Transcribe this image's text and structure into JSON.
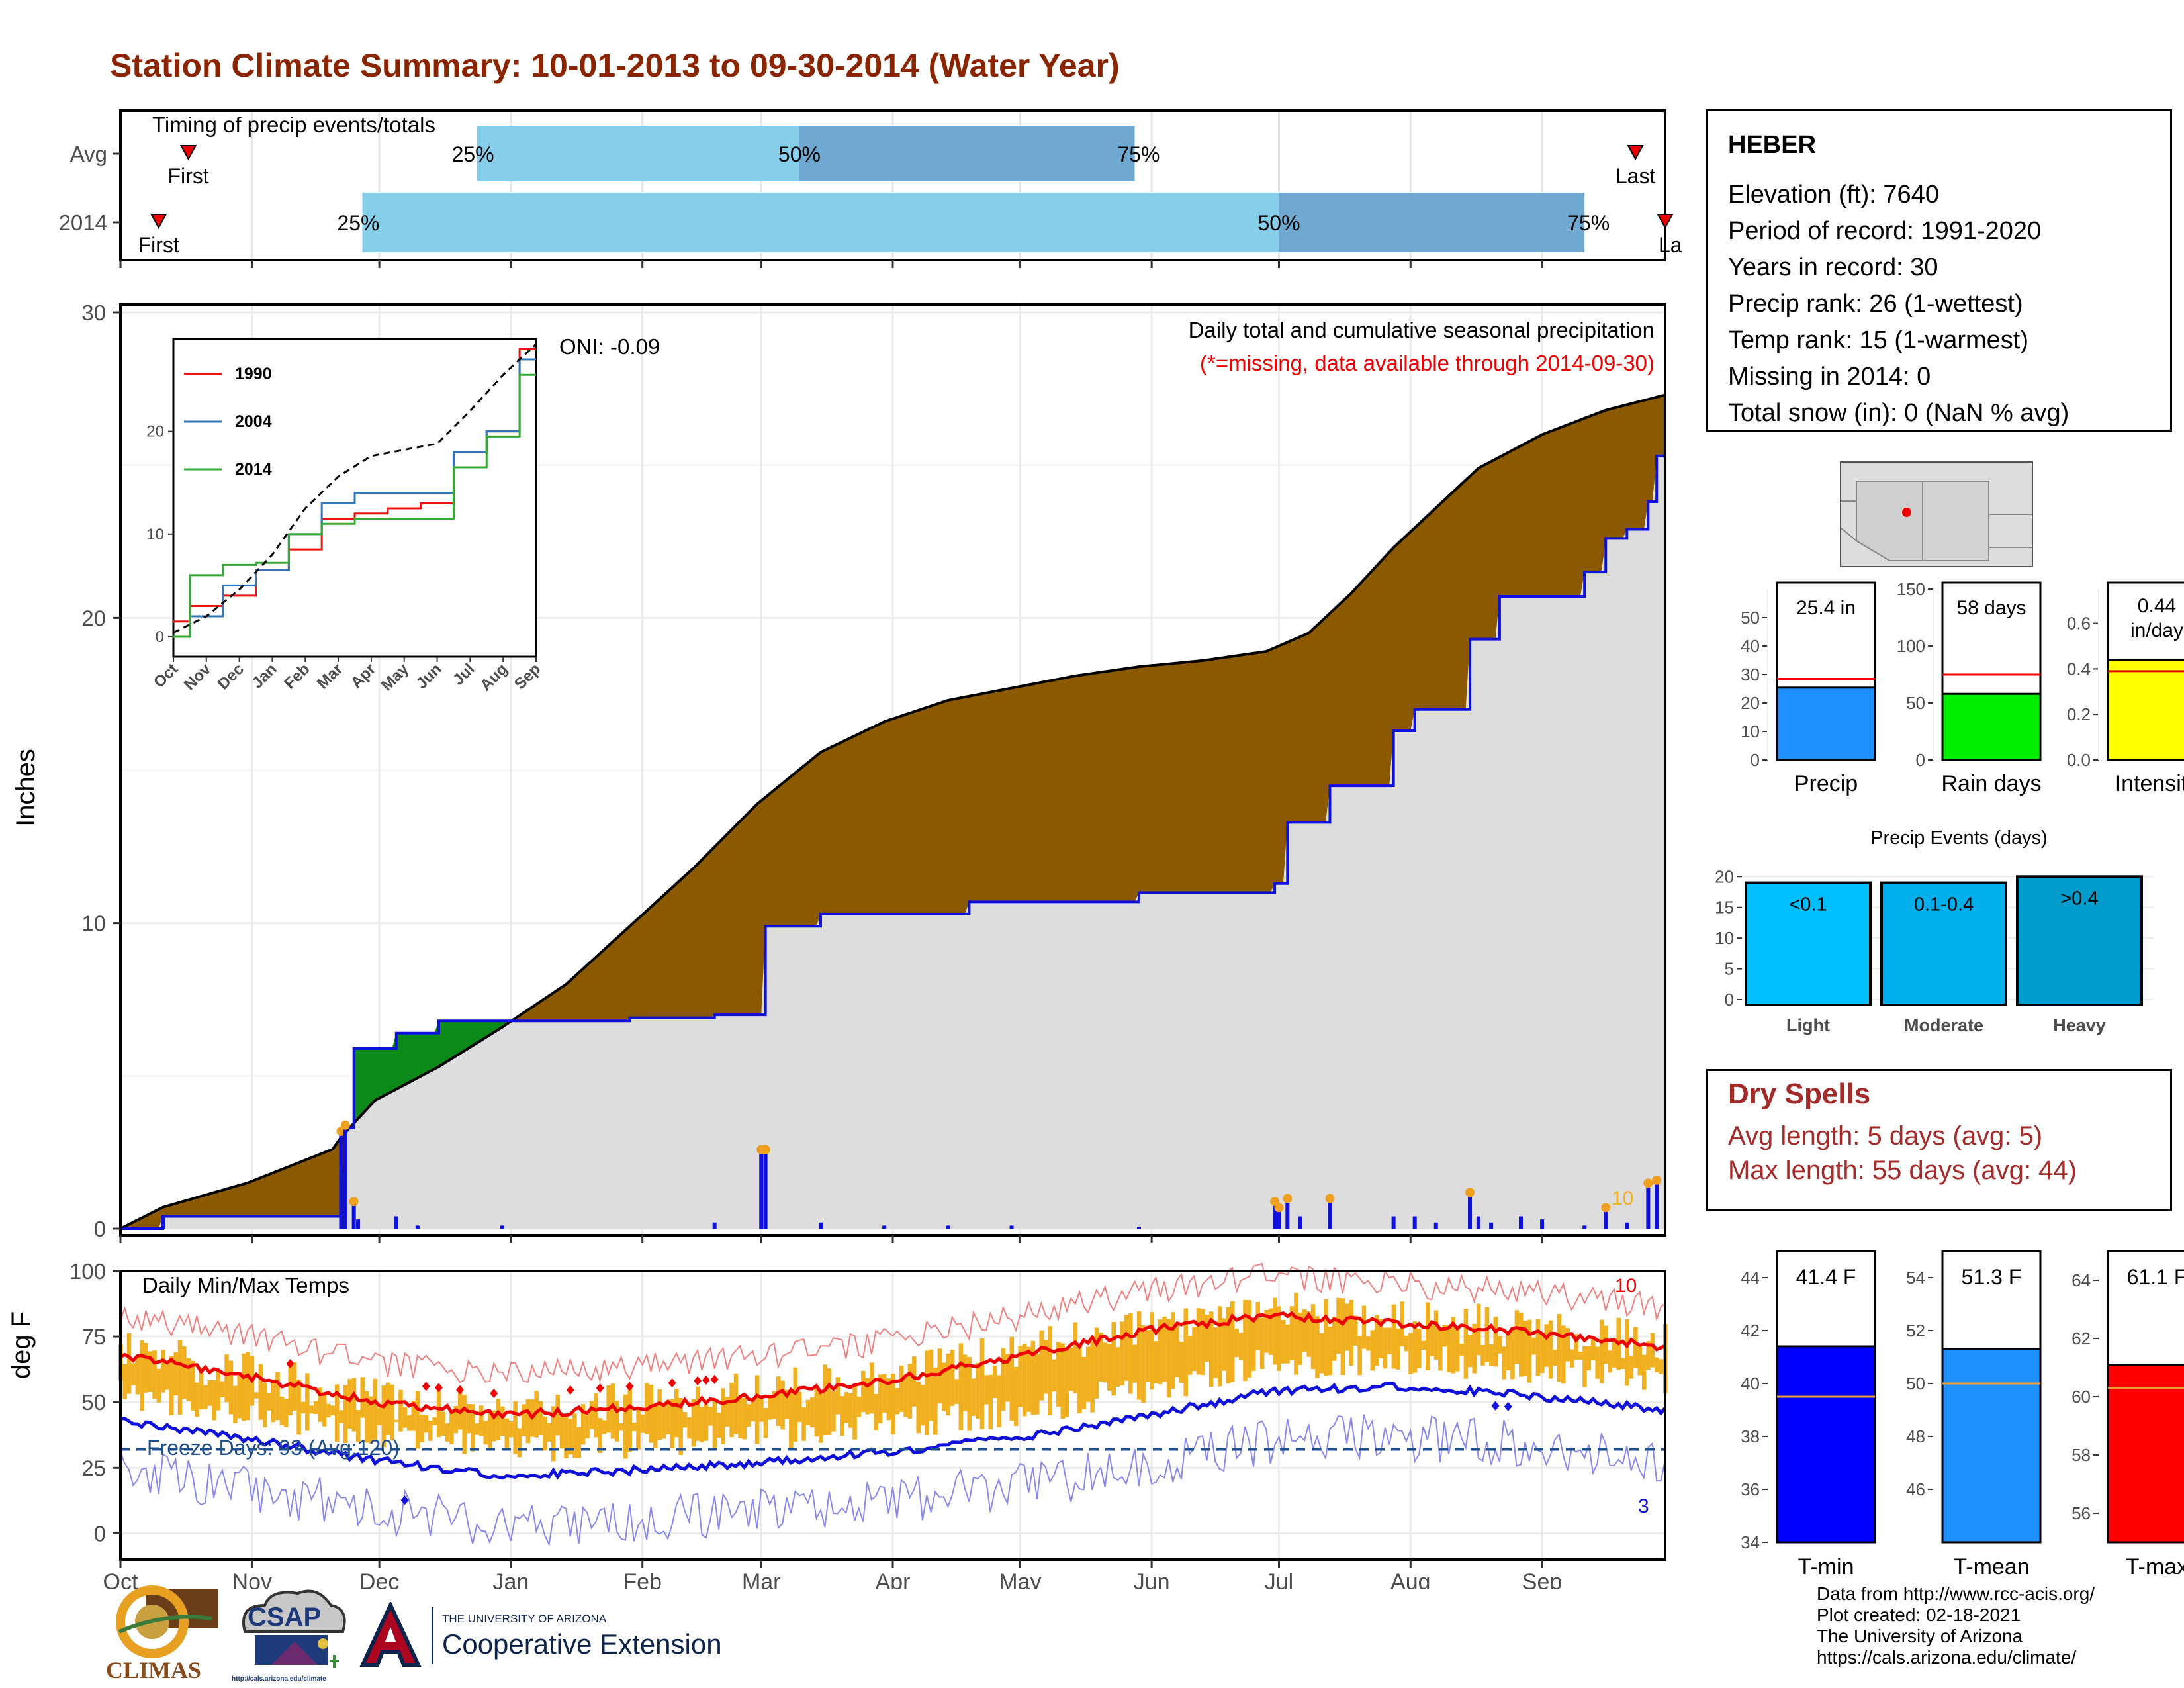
{
  "page_title": "Station Climate Summary: 10-01-2013 to 09-30-2014 (Water Year)",
  "colors": {
    "title": "#8B2500",
    "brown": "#8B5A00",
    "green": "#0B8A1A",
    "blue": "#1010DD",
    "light_blue": "#87CEEB",
    "mid_blue": "#6FA8D0",
    "orange": "#F0B020",
    "red": "#EE0000",
    "gray_fill": "#DDDDDD",
    "dry_red": "#A52A2A"
  },
  "timing": {
    "title": "Timing of precip events/totals",
    "rows": [
      {
        "label": "Avg",
        "first_label": "First",
        "last_label": "Last",
        "p25": "25%",
        "p50": "50%",
        "p75": "75%",
        "first_day": 16,
        "p25_day": 84,
        "p50_day": 160,
        "p75_day": 239,
        "last_day": 357
      },
      {
        "label": "2014",
        "first_label": "First",
        "last_label": "Last",
        "p25": "25%",
        "p50": "50%",
        "p75": "75%",
        "first_day": 9,
        "p25_day": 57,
        "p50_day": 273,
        "p75_day": 345,
        "last_day": 364
      }
    ]
  },
  "main_chart": {
    "ylabel": "Inches",
    "y_ticks": [
      "0",
      "10",
      "20",
      "30"
    ],
    "ylim": [
      0,
      30
    ],
    "note_title": "Daily total and cumulative seasonal precipitation",
    "note_missing": "(*=missing, data available through 2014-09-30)",
    "oni": "ONI: -0.09",
    "count_label": "10"
  },
  "chart_data": [
    {
      "type": "area",
      "title": "Daily total and cumulative seasonal precipitation",
      "ylabel": "Inches",
      "ylim": [
        0,
        30
      ],
      "x_unit": "day of water year",
      "series": [
        {
          "name": "avg-cumulative",
          "x": [
            0,
            10,
            30,
            50,
            52,
            60,
            75,
            90,
            105,
            120,
            135,
            150,
            165,
            180,
            195,
            210,
            225,
            240,
            255,
            270,
            280,
            290,
            300,
            310,
            320,
            335,
            350,
            364
          ],
          "values": [
            0,
            0.7,
            1.5,
            2.6,
            3.0,
            4.2,
            5.3,
            6.6,
            8.0,
            9.9,
            11.8,
            13.9,
            15.6,
            16.6,
            17.3,
            17.7,
            18.1,
            18.4,
            18.6,
            18.9,
            19.5,
            20.8,
            22.3,
            23.6,
            24.9,
            26.0,
            26.8,
            27.3
          ]
        },
        {
          "name": "2014-cumulative",
          "x": [
            0,
            9,
            10,
            52,
            53,
            55,
            65,
            75,
            90,
            120,
            140,
            151,
            152,
            165,
            200,
            240,
            272,
            275,
            285,
            300,
            305,
            318,
            325,
            345,
            350,
            355,
            360,
            362,
            364
          ],
          "values": [
            0,
            0,
            0.4,
            0.5,
            3.3,
            5.9,
            6.4,
            6.8,
            6.8,
            6.9,
            7.0,
            7.0,
            9.9,
            10.3,
            10.7,
            11.0,
            11.3,
            13.3,
            14.5,
            16.3,
            17.0,
            19.3,
            20.7,
            21.5,
            22.6,
            22.9,
            23.8,
            25.3,
            25.3
          ]
        },
        {
          "name": "daily-precip",
          "x": [
            10,
            52,
            53,
            55,
            56,
            65,
            70,
            90,
            140,
            151,
            152,
            165,
            180,
            195,
            210,
            240,
            272,
            273,
            275,
            278,
            285,
            300,
            305,
            310,
            318,
            320,
            323,
            330,
            335,
            345,
            350,
            355,
            360,
            362
          ],
          "values": [
            0.4,
            3.1,
            3.3,
            0.8,
            0.3,
            0.4,
            0.1,
            0.1,
            0.2,
            2.5,
            2.5,
            0.2,
            0.1,
            0.1,
            0.1,
            0.05,
            0.8,
            0.6,
            0.9,
            0.4,
            0.9,
            0.4,
            0.4,
            0.2,
            1.1,
            0.4,
            0.2,
            0.4,
            0.3,
            0.1,
            0.6,
            0.2,
            1.4,
            1.5
          ]
        }
      ]
    },
    {
      "type": "line",
      "title": "",
      "x_ticks": [
        "Oct",
        "Nov",
        "Dec",
        "Jan",
        "Feb",
        "Mar",
        "Apr",
        "May",
        "Jun",
        "Jul",
        "Aug",
        "Sep"
      ],
      "y_ticks": [
        "0",
        "10",
        "20"
      ],
      "ylim": [
        0,
        29
      ],
      "series": [
        {
          "name": "1990",
          "color": "#EE1111",
          "x": [
            0,
            1,
            2,
            3,
            4,
            5,
            6,
            7,
            8,
            9,
            10,
            11
          ],
          "values": [
            1.5,
            3.0,
            4.0,
            6.5,
            8.5,
            11.5,
            12.0,
            12.5,
            13.0,
            18.0,
            20.0,
            28.0
          ]
        },
        {
          "name": "2004",
          "color": "#3377BB",
          "x": [
            0,
            1,
            2,
            3,
            4,
            5,
            6,
            7,
            8,
            9,
            10,
            11
          ],
          "values": [
            0,
            2.0,
            5.0,
            6.5,
            10.0,
            13.0,
            14.0,
            14.0,
            14.0,
            18.0,
            20.0,
            27.0
          ]
        },
        {
          "name": "2014",
          "color": "#33AA33",
          "x": [
            0,
            1,
            2,
            3,
            4,
            5,
            6,
            7,
            8,
            9,
            10,
            11
          ],
          "values": [
            0,
            6.0,
            7.0,
            7.2,
            10.0,
            11.0,
            11.5,
            11.5,
            11.5,
            16.5,
            19.5,
            25.5
          ]
        },
        {
          "name": "avg",
          "color": "#000000",
          "x": [
            0,
            1,
            2,
            3,
            4,
            5,
            6,
            7,
            8,
            9,
            10,
            11
          ],
          "values": [
            0.4,
            2.0,
            4.6,
            8.0,
            12.5,
            15.6,
            17.6,
            18.2,
            18.8,
            22.0,
            25.5,
            28.5
          ]
        }
      ]
    },
    {
      "type": "line",
      "title": "Daily Min/Max Temps",
      "ylabel": "deg F",
      "ylim": [
        -10,
        100
      ],
      "x_unit": "day of water year",
      "series": [
        {
          "name": "avg-max",
          "x": [
            0,
            30,
            60,
            90,
            120,
            150,
            180,
            210,
            240,
            270,
            300,
            330,
            364
          ],
          "values": [
            68,
            60,
            50,
            45,
            48,
            52,
            58,
            67,
            77,
            83,
            80,
            77,
            71
          ]
        },
        {
          "name": "avg-min",
          "x": [
            0,
            30,
            60,
            90,
            120,
            150,
            180,
            210,
            240,
            270,
            300,
            330,
            364
          ],
          "values": [
            43,
            36,
            28,
            22,
            24,
            27,
            31,
            36,
            44,
            54,
            56,
            53,
            47
          ]
        },
        {
          "name": "freeze-threshold",
          "x": [
            0,
            364
          ],
          "values": [
            32,
            32
          ]
        }
      ]
    },
    {
      "type": "bar",
      "title": "",
      "categories": [
        "Precip"
      ],
      "values": [
        25.4
      ],
      "avg": [
        28.5
      ],
      "ylim": [
        0,
        60
      ],
      "y_ticks": [
        "0",
        "10",
        "20",
        "30",
        "40",
        "50"
      ],
      "value_label": "25.4 in"
    },
    {
      "type": "bar",
      "title": "",
      "categories": [
        "Rain days"
      ],
      "values": [
        58
      ],
      "avg": [
        75
      ],
      "ylim": [
        0,
        150
      ],
      "y_ticks": [
        "0",
        "50",
        "100",
        "150"
      ],
      "value_label": "58 days"
    },
    {
      "type": "bar",
      "title": "",
      "categories": [
        "Intensity"
      ],
      "values": [
        0.44
      ],
      "avg": [
        0.39
      ],
      "ylim": [
        0,
        0.75
      ],
      "y_ticks": [
        "0.0",
        "0.2",
        "0.4",
        "0.6"
      ],
      "value_label": "0.44 in/day"
    },
    {
      "type": "bar",
      "title": "Precip Events (days)",
      "categories": [
        "Light",
        "Moderate",
        "Heavy"
      ],
      "values": [
        19,
        19,
        20
      ],
      "labels": [
        "<0.1",
        "0.1-0.4",
        ">0.4"
      ],
      "ylim": [
        0,
        20.5
      ],
      "y_ticks": [
        "0",
        "5",
        "10",
        "15",
        "20"
      ]
    },
    {
      "type": "bar",
      "title": "",
      "categories": [
        "T-min"
      ],
      "values": [
        41.4
      ],
      "avg": [
        39.5
      ],
      "ylim": [
        34,
        45
      ],
      "y_ticks": [
        "34",
        "36",
        "38",
        "40",
        "42",
        "44"
      ],
      "value_label": "41.4 F"
    },
    {
      "type": "bar",
      "title": "",
      "categories": [
        "T-mean"
      ],
      "values": [
        51.3
      ],
      "avg": [
        50.0
      ],
      "ylim": [
        44,
        55
      ],
      "y_ticks": [
        "46",
        "48",
        "50",
        "52",
        "54"
      ],
      "value_label": "51.3 F"
    },
    {
      "type": "bar",
      "title": "",
      "categories": [
        "T-max"
      ],
      "values": [
        61.1
      ],
      "avg": [
        60.3
      ],
      "ylim": [
        55,
        65
      ],
      "y_ticks": [
        "56",
        "58",
        "60",
        "62",
        "64"
      ],
      "value_label": "61.1 F"
    }
  ],
  "inset_legend": [
    "1990",
    "2004",
    "2014"
  ],
  "temp_chart": {
    "title": "Daily Min/Max Temps",
    "ylabel": "deg F",
    "y_ticks": [
      "0",
      "25",
      "50",
      "75",
      "100"
    ],
    "freeze_text": "Freeze Days: 93 (Avg:120)",
    "count_top": "10",
    "count_bottom": "3"
  },
  "x_months": [
    "Oct",
    "Nov",
    "Dec",
    "Jan",
    "Feb",
    "Mar",
    "Apr",
    "May",
    "Jun",
    "Jul",
    "Aug",
    "Sep"
  ],
  "station": {
    "name": "HEBER",
    "lines": [
      "Elevation (ft): 7640",
      "Period of record: 1991-2020",
      "Years in record: 30",
      "Precip rank: 26 (1-wettest)",
      "Temp rank: 15 (1-warmest)",
      "Missing in 2014: 0",
      "Total snow (in): 0 (NaN % avg)"
    ]
  },
  "dry_spells": {
    "title": "Dry Spells",
    "avg_length": "Avg length: 5 days (avg: 5)",
    "max_length": "Max length: 55 days (avg: 44)"
  },
  "footer": {
    "credits": [
      "Data from http://www.rcc-acis.org/",
      "Plot created: 02-18-2021",
      "The University of Arizona",
      "https://cals.arizona.edu/climate/"
    ],
    "logo_climas": "CLIMAS",
    "logo_csap": "CSAP",
    "logo_csap_url": "http://cals.arizona.edu/climate",
    "ua_small": "THE UNIVERSITY OF ARIZONA",
    "ua_big": "Cooperative Extension"
  }
}
